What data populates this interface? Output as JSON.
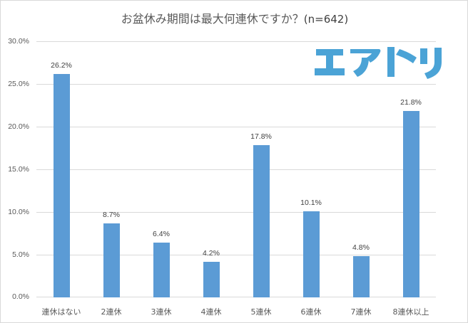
{
  "title": {
    "main": "お盆休み期間は最大何連休ですか？",
    "sample": "(n=642)"
  },
  "logo": {
    "text": "エアトリ",
    "color": "#4ba3d6"
  },
  "colors": {
    "bar": "#5b9bd5",
    "grid": "#d9d9d9",
    "text": "#595959"
  },
  "chart_data": {
    "type": "bar",
    "title": "お盆休み期間は最大何連休ですか？(n=642)",
    "categories": [
      "連休はない",
      "2連休",
      "3連休",
      "4連休",
      "5連休",
      "6連休",
      "7連休",
      "8連休以上"
    ],
    "values": [
      26.2,
      8.7,
      6.4,
      4.2,
      17.8,
      10.1,
      4.8,
      21.8
    ],
    "value_labels": [
      "26.2%",
      "8.7%",
      "6.4%",
      "4.2%",
      "17.8%",
      "10.1%",
      "4.8%",
      "21.8%"
    ],
    "xlabel": "",
    "ylabel": "",
    "ylim": [
      0,
      30
    ],
    "yticks": [
      "0.0%",
      "5.0%",
      "10.0%",
      "15.0%",
      "20.0%",
      "25.0%",
      "30.0%"
    ],
    "grid": true,
    "legend": "none"
  }
}
